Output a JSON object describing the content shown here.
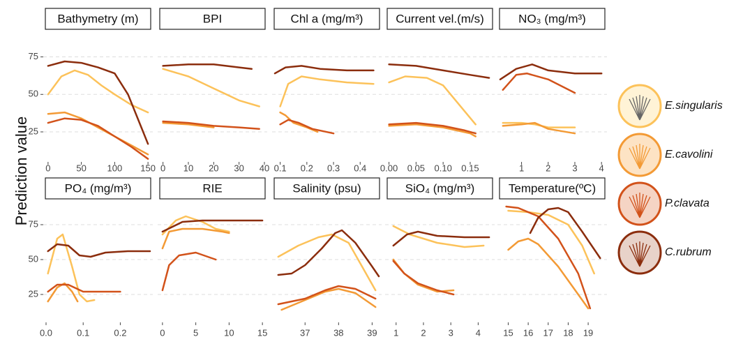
{
  "chart_data": [
    {
      "type": "line",
      "title": "Bathymetry (m)",
      "ylabel": "Prediction value",
      "xlim": [
        -3,
        153
      ],
      "xticks": [
        0,
        50,
        100,
        150
      ],
      "ylim": [
        5,
        92
      ],
      "yticks": [
        25,
        50,
        75
      ],
      "grid": true,
      "series": [
        {
          "name": "E.singularis",
          "color": "#fcc25a",
          "x": [
            0,
            20,
            40,
            60,
            80,
            100,
            125,
            150
          ],
          "y": [
            50,
            62,
            66,
            63,
            56,
            50,
            43,
            38
          ]
        },
        {
          "name": "E.cavolini",
          "color": "#f39a35",
          "x": [
            0,
            25,
            50,
            75,
            100,
            125,
            150
          ],
          "y": [
            37,
            38,
            34,
            28,
            22,
            16,
            10
          ]
        },
        {
          "name": "P.clavata",
          "color": "#d2521a",
          "x": [
            0,
            25,
            50,
            75,
            100,
            125,
            150
          ],
          "y": [
            31,
            34,
            33,
            29,
            22,
            15,
            7
          ]
        },
        {
          "name": "C.rubrum",
          "color": "#8b2d0d",
          "x": [
            0,
            25,
            50,
            75,
            100,
            120,
            140,
            150
          ],
          "y": [
            69,
            72,
            71,
            68,
            64,
            50,
            28,
            17
          ]
        }
      ]
    },
    {
      "type": "line",
      "title": "BPI",
      "xlim": [
        -1,
        40
      ],
      "xticks": [
        0,
        10,
        20,
        30,
        40
      ],
      "ylim": [
        5,
        92
      ],
      "yticks": [
        25,
        50,
        75
      ],
      "grid": true,
      "series": [
        {
          "name": "E.singularis",
          "color": "#fcc25a",
          "x": [
            0,
            10,
            20,
            30,
            38
          ],
          "y": [
            67,
            62,
            54,
            46,
            42
          ]
        },
        {
          "name": "E.cavolini",
          "color": "#f39a35",
          "x": [
            0,
            10,
            20
          ],
          "y": [
            31,
            30,
            28
          ]
        },
        {
          "name": "P.clavata",
          "color": "#d2521a",
          "x": [
            0,
            10,
            20,
            30,
            38
          ],
          "y": [
            32,
            31,
            29,
            28,
            27
          ]
        },
        {
          "name": "C.rubrum",
          "color": "#8b2d0d",
          "x": [
            0,
            10,
            20,
            30,
            35
          ],
          "y": [
            69,
            70,
            70,
            68,
            67
          ]
        }
      ]
    },
    {
      "type": "line",
      "title": "Chl a (mg/m³)",
      "xlim": [
        0.08,
        0.47
      ],
      "xticks": [
        0.1,
        0.2,
        0.3,
        0.4
      ],
      "ylim": [
        5,
        92
      ],
      "yticks": [
        25,
        50,
        75
      ],
      "grid": true,
      "series": [
        {
          "name": "E.singularis",
          "color": "#fcc25a",
          "x": [
            0.1,
            0.13,
            0.18,
            0.25,
            0.35,
            0.45
          ],
          "y": [
            42,
            57,
            62,
            60,
            58,
            57
          ]
        },
        {
          "name": "E.cavolini",
          "color": "#f39a35",
          "x": [
            0.1,
            0.12,
            0.15,
            0.2,
            0.24
          ],
          "y": [
            38,
            36,
            31,
            28,
            25
          ]
        },
        {
          "name": "P.clavata",
          "color": "#d2521a",
          "x": [
            0.1,
            0.13,
            0.17,
            0.22,
            0.3
          ],
          "y": [
            30,
            33,
            31,
            27,
            24
          ]
        },
        {
          "name": "C.rubrum",
          "color": "#8b2d0d",
          "x": [
            0.08,
            0.12,
            0.18,
            0.25,
            0.35,
            0.45
          ],
          "y": [
            64,
            68,
            69,
            67,
            66,
            66
          ]
        }
      ]
    },
    {
      "type": "line",
      "title": "Current vel.(m/s)",
      "xlim": [
        -0.002,
        0.19
      ],
      "xticks": [
        {
          "value": 0,
          "label": "0.00"
        },
        {
          "value": 0.05,
          "label": "0.05"
        },
        {
          "value": 0.1,
          "label": "0.10"
        },
        {
          "value": 0.15,
          "label": "0.15"
        }
      ],
      "ylim": [
        5,
        92
      ],
      "yticks": [
        25,
        50,
        75
      ],
      "grid": true,
      "series": [
        {
          "name": "E.singularis",
          "color": "#fcc25a",
          "x": [
            0,
            0.03,
            0.07,
            0.1,
            0.13,
            0.16
          ],
          "y": [
            58,
            62,
            61,
            56,
            43,
            30
          ]
        },
        {
          "name": "E.cavolini",
          "color": "#f39a35",
          "x": [
            0,
            0.05,
            0.1,
            0.15,
            0.16
          ],
          "y": [
            29,
            30,
            28,
            24,
            22
          ]
        },
        {
          "name": "P.clavata",
          "color": "#d2521a",
          "x": [
            0,
            0.05,
            0.1,
            0.14,
            0.16
          ],
          "y": [
            30,
            31,
            29,
            26,
            24
          ]
        },
        {
          "name": "C.rubrum",
          "color": "#8b2d0d",
          "x": [
            0,
            0.05,
            0.1,
            0.15,
            0.185
          ],
          "y": [
            70,
            69,
            66,
            63,
            61
          ]
        }
      ]
    },
    {
      "type": "line",
      "title": "NO₃ (mg/m³)",
      "xlim": [
        0.2,
        4.1
      ],
      "xticks": [
        1,
        2,
        3,
        4
      ],
      "ylim": [
        5,
        92
      ],
      "yticks": [
        25,
        50,
        75
      ],
      "grid": true,
      "series": [
        {
          "name": "E.singularis",
          "color": "#fcc25a",
          "x": [
            0.3,
            1,
            1.5,
            2,
            3
          ],
          "y": [
            31,
            31,
            30,
            28,
            28
          ]
        },
        {
          "name": "E.cavolini",
          "color": "#f39a35",
          "x": [
            0.3,
            1,
            1.5,
            2,
            3
          ],
          "y": [
            29,
            30,
            31,
            27,
            24
          ]
        },
        {
          "name": "P.clavata",
          "color": "#d2521a",
          "x": [
            0.3,
            0.8,
            1.2,
            2,
            3
          ],
          "y": [
            53,
            63,
            64,
            60,
            51
          ]
        },
        {
          "name": "C.rubrum",
          "color": "#8b2d0d",
          "x": [
            0.2,
            0.8,
            1.4,
            2,
            3,
            4
          ],
          "y": [
            60,
            67,
            70,
            66,
            64,
            64
          ]
        }
      ]
    },
    {
      "type": "line",
      "title": "PO₄ (mg/m³)",
      "xlim": [
        0,
        0.28
      ],
      "xticks": [
        {
          "value": 0,
          "label": "0.0"
        },
        {
          "value": 0.1,
          "label": "0.1"
        },
        {
          "value": 0.2,
          "label": "0.2"
        }
      ],
      "ylim": [
        5,
        92
      ],
      "yticks": [
        25,
        50,
        75
      ],
      "grid": true,
      "series": [
        {
          "name": "E.singularis",
          "color": "#fcc25a",
          "x": [
            0.005,
            0.03,
            0.045,
            0.07,
            0.09,
            0.11,
            0.13
          ],
          "y": [
            40,
            65,
            68,
            45,
            25,
            20,
            21
          ]
        },
        {
          "name": "E.cavolini",
          "color": "#f39a35",
          "x": [
            0.005,
            0.03,
            0.05,
            0.07,
            0.085
          ],
          "y": [
            20,
            30,
            33,
            27,
            20
          ]
        },
        {
          "name": "P.clavata",
          "color": "#d2521a",
          "x": [
            0.005,
            0.03,
            0.06,
            0.1,
            0.15,
            0.2
          ],
          "y": [
            27,
            32,
            32,
            27,
            27,
            27
          ]
        },
        {
          "name": "C.rubrum",
          "color": "#8b2d0d",
          "x": [
            0.005,
            0.03,
            0.06,
            0.09,
            0.12,
            0.16,
            0.22,
            0.28
          ],
          "y": [
            56,
            61,
            60,
            53,
            52,
            55,
            56,
            56
          ]
        }
      ]
    },
    {
      "type": "line",
      "title": "RIE",
      "xlim": [
        -0.3,
        15.3
      ],
      "xticks": [
        0,
        5,
        10,
        15
      ],
      "ylim": [
        5,
        92
      ],
      "yticks": [
        25,
        50,
        75
      ],
      "grid": true,
      "series": [
        {
          "name": "E.singularis",
          "color": "#fcc25a",
          "x": [
            0,
            2,
            3.5,
            6,
            8,
            10
          ],
          "y": [
            68,
            78,
            81,
            77,
            72,
            70
          ]
        },
        {
          "name": "E.cavolini",
          "color": "#f39a35",
          "x": [
            0,
            1,
            3,
            6,
            9,
            10
          ],
          "y": [
            58,
            70,
            72,
            72,
            70,
            69
          ]
        },
        {
          "name": "P.clavata",
          "color": "#d2521a",
          "x": [
            0,
            1,
            2.5,
            5,
            8
          ],
          "y": [
            28,
            46,
            53,
            55,
            50
          ]
        },
        {
          "name": "C.rubrum",
          "color": "#8b2d0d",
          "x": [
            0,
            3,
            6,
            10,
            15
          ],
          "y": [
            70,
            77,
            78,
            78,
            78
          ]
        }
      ]
    },
    {
      "type": "line",
      "title": "Salinity (psu)",
      "xlim": [
        36.1,
        39.2
      ],
      "xticks": [
        37,
        38,
        39
      ],
      "ylim": [
        5,
        92
      ],
      "yticks": [
        25,
        50,
        75
      ],
      "grid": true,
      "series": [
        {
          "name": "E.singularis",
          "color": "#fcc25a",
          "x": [
            36.2,
            36.8,
            37.4,
            37.8,
            38.3,
            38.7,
            39.1
          ],
          "y": [
            52,
            60,
            66,
            68,
            62,
            45,
            28
          ]
        },
        {
          "name": "E.cavolini",
          "color": "#f39a35",
          "x": [
            36.3,
            37,
            37.6,
            38,
            38.5,
            39.1
          ],
          "y": [
            14,
            21,
            27,
            29,
            26,
            16
          ]
        },
        {
          "name": "P.clavata",
          "color": "#d2521a",
          "x": [
            36.2,
            37,
            37.6,
            38,
            38.5,
            39.1
          ],
          "y": [
            18,
            22,
            28,
            31,
            29,
            22
          ]
        },
        {
          "name": "C.rubrum",
          "color": "#8b2d0d",
          "x": [
            36.2,
            36.6,
            37,
            37.5,
            37.9,
            38.1,
            38.5,
            39,
            39.2
          ],
          "y": [
            39,
            40,
            46,
            58,
            69,
            71,
            62,
            45,
            38
          ]
        }
      ]
    },
    {
      "type": "line",
      "title": "SiO₄ (mg/m³)",
      "xlim": [
        0.7,
        4.5
      ],
      "xticks": [
        1,
        2,
        3,
        4
      ],
      "ylim": [
        5,
        92
      ],
      "yticks": [
        25,
        50,
        75
      ],
      "grid": true,
      "series": [
        {
          "name": "E.singularis",
          "color": "#fcc25a",
          "x": [
            0.9,
            1.5,
            2.5,
            3.5,
            4.2
          ],
          "y": [
            74,
            68,
            62,
            59,
            60
          ]
        },
        {
          "name": "E.cavolini",
          "color": "#f39a35",
          "x": [
            0.9,
            1.3,
            1.8,
            2.5,
            3.1
          ],
          "y": [
            50,
            40,
            32,
            27,
            28
          ]
        },
        {
          "name": "P.clavata",
          "color": "#d2521a",
          "x": [
            0.9,
            1.3,
            1.8,
            2.5,
            3.1
          ],
          "y": [
            49,
            40,
            33,
            28,
            25
          ]
        },
        {
          "name": "C.rubrum",
          "color": "#8b2d0d",
          "x": [
            0.9,
            1.4,
            1.8,
            2.5,
            3.5,
            4.4
          ],
          "y": [
            60,
            68,
            70,
            67,
            66,
            66
          ]
        }
      ]
    },
    {
      "type": "line",
      "title": "Temperature(ºC)",
      "xlim": [
        14.6,
        19.8
      ],
      "xticks": [
        15,
        16,
        17,
        18,
        19
      ],
      "ylim": [
        5,
        92
      ],
      "yticks": [
        25,
        50,
        75
      ],
      "grid": true,
      "series": [
        {
          "name": "E.singularis",
          "color": "#fcc25a",
          "x": [
            15,
            16,
            17,
            18,
            18.7,
            19.3
          ],
          "y": [
            85,
            84,
            82,
            75,
            60,
            40
          ]
        },
        {
          "name": "E.cavolini",
          "color": "#f39a35",
          "x": [
            15,
            15.5,
            16,
            16.5,
            17.5,
            18.5,
            19
          ],
          "y": [
            57,
            63,
            65,
            61,
            45,
            25,
            15
          ]
        },
        {
          "name": "P.clavata",
          "color": "#d2521a",
          "x": [
            14.9,
            15.5,
            16.5,
            17.5,
            18.5,
            19.1
          ],
          "y": [
            88,
            87,
            81,
            65,
            40,
            15
          ]
        },
        {
          "name": "C.rubrum",
          "color": "#8b2d0d",
          "x": [
            16.1,
            16.5,
            17,
            17.5,
            18,
            18.7,
            19.6
          ],
          "y": [
            69,
            80,
            86,
            87,
            84,
            70,
            51
          ]
        }
      ]
    }
  ]
}
